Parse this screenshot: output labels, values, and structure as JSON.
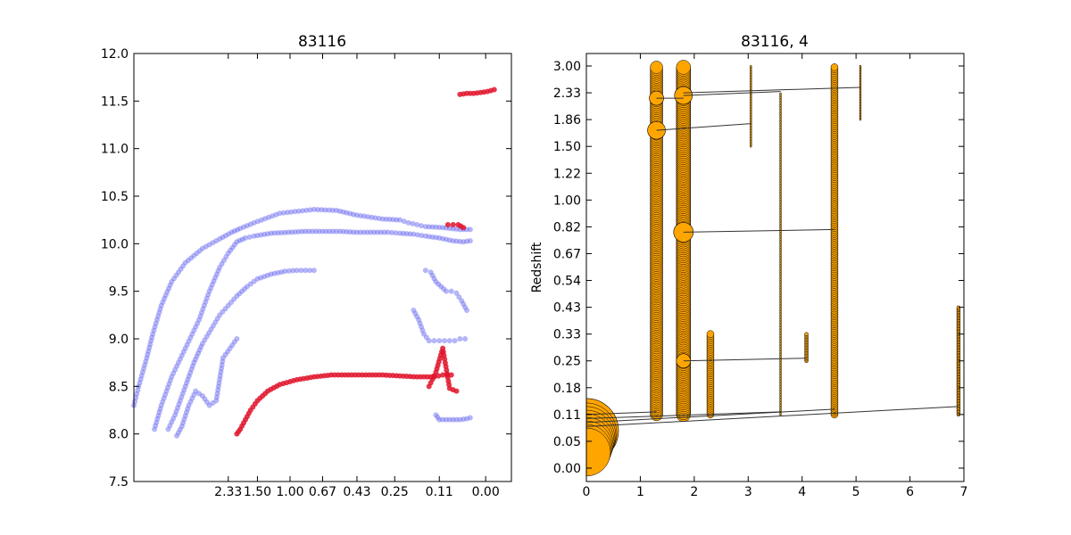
{
  "chart_data": [
    {
      "type": "scatter",
      "title": "83116",
      "xlabel": "",
      "ylabel": "",
      "ylim": [
        7.5,
        12.0
      ],
      "yticks": [
        "7.5",
        "8.0",
        "8.5",
        "9.0",
        "9.5",
        "10.0",
        "10.5",
        "11.0",
        "11.5",
        "12.0"
      ],
      "xticks": [
        "2.33",
        "1.50",
        "1.00",
        "0.67",
        "0.43",
        "0.25",
        "0.11",
        "0.00"
      ],
      "grid": false,
      "colors": {
        "blue": "#6b6bf2",
        "red": "#e0142c"
      },
      "series": [
        {
          "color": "blue",
          "segments": [
            {
              "x": [
                0.0,
                0.28,
                0.75,
                1.1,
                1.6,
                2.2,
                3.0,
                4.0,
                5.0,
                5.7,
                6.2,
                7.0,
                8.5,
                10.5,
                11.8,
                13.0,
                14.5,
                15.5,
                16.0,
                16.5,
                17.0,
                18.0,
                19.0,
                19.6
              ],
              "y": [
                8.3,
                8.5,
                8.8,
                9.05,
                9.35,
                9.6,
                9.8,
                9.95,
                10.05,
                10.12,
                10.16,
                10.22,
                10.32,
                10.36,
                10.35,
                10.3,
                10.26,
                10.25,
                10.22,
                10.2,
                10.18,
                10.17,
                10.15,
                10.15
              ]
            },
            {
              "x": [
                1.2,
                1.6,
                2.2,
                3.0,
                3.8,
                4.4,
                5.0,
                5.5,
                6.0,
                6.5,
                7.0,
                8.0,
                9.0,
                10.0,
                11.0,
                12.0,
                13.0,
                14.0,
                14.8,
                15.5,
                16.3,
                17.0,
                17.8,
                18.6,
                19.2,
                19.6
              ],
              "y": [
                8.05,
                8.3,
                8.6,
                8.9,
                9.2,
                9.5,
                9.75,
                9.9,
                10.02,
                10.06,
                10.08,
                10.11,
                10.12,
                10.13,
                10.13,
                10.13,
                10.12,
                10.12,
                10.12,
                10.11,
                10.1,
                10.08,
                10.06,
                10.03,
                10.02,
                10.03
              ]
            },
            {
              "x": [
                2.0,
                2.4,
                3.0,
                3.5,
                4.0,
                4.5,
                5.0,
                5.5,
                6.0,
                6.6,
                7.2,
                8.0,
                8.8,
                9.5,
                10.0,
                10.5
              ],
              "y": [
                8.05,
                8.2,
                8.5,
                8.75,
                8.95,
                9.1,
                9.25,
                9.35,
                9.45,
                9.55,
                9.63,
                9.68,
                9.71,
                9.72,
                9.72,
                9.72
              ]
            },
            {
              "x": [
                2.5,
                2.8,
                3.2,
                3.6,
                4.0,
                4.4,
                4.8,
                5.2,
                5.6,
                6.0
              ],
              "y": [
                7.98,
                8.08,
                8.3,
                8.45,
                8.4,
                8.3,
                8.35,
                8.8,
                8.9,
                9.0
              ]
            },
            {
              "x": [
                17.0,
                17.3,
                17.6,
                17.9,
                18.2,
                18.5,
                18.8,
                19.1,
                19.4
              ],
              "y": [
                9.72,
                9.7,
                9.6,
                9.55,
                9.5,
                9.5,
                9.48,
                9.4,
                9.3
              ]
            },
            {
              "x": [
                16.3,
                16.6,
                16.9,
                17.2,
                17.5,
                17.8,
                18.1,
                18.4,
                18.7,
                19.0,
                19.3
              ],
              "y": [
                9.3,
                9.2,
                9.05,
                8.98,
                8.98,
                8.98,
                8.98,
                8.98,
                8.98,
                9.0,
                9.0
              ]
            },
            {
              "x": [
                17.6,
                17.8,
                18.2,
                18.6,
                19.0,
                19.4,
                19.6
              ],
              "y": [
                8.2,
                8.15,
                8.15,
                8.15,
                8.15,
                8.16,
                8.17
              ]
            }
          ]
        },
        {
          "color": "red",
          "segments": [
            {
              "x": [
                6.0,
                6.2,
                6.5,
                6.8,
                7.2,
                7.8,
                8.5,
                9.5,
                10.5,
                11.5,
                12.5,
                13.5,
                14.5,
                15.5,
                16.5,
                17.5,
                18.0,
                18.5
              ],
              "y": [
                8.0,
                8.05,
                8.15,
                8.25,
                8.35,
                8.45,
                8.52,
                8.57,
                8.6,
                8.62,
                8.62,
                8.62,
                8.62,
                8.61,
                8.6,
                8.6,
                8.62,
                8.62
              ]
            },
            {
              "x": [
                17.2,
                17.6,
                18.0,
                18.4,
                18.8
              ],
              "y": [
                8.5,
                8.65,
                8.9,
                8.48,
                8.45
              ]
            },
            {
              "x": [
                18.3,
                18.6,
                18.9,
                19.2
              ],
              "y": [
                10.2,
                10.2,
                10.2,
                10.17
              ]
            },
            {
              "x": [
                19.0,
                19.4,
                19.8,
                20.2,
                20.6,
                21.0
              ],
              "y": [
                11.57,
                11.58,
                11.58,
                11.59,
                11.6,
                11.62
              ]
            }
          ]
        }
      ]
    },
    {
      "type": "scatter",
      "title": "83116, 4",
      "xlabel": "",
      "ylabel": "Redshift",
      "xlim": [
        0,
        7
      ],
      "xticks": [
        "0",
        "1",
        "2",
        "3",
        "4",
        "5",
        "6",
        "7"
      ],
      "yticks": [
        "0.00",
        "0.05",
        "0.11",
        "0.18",
        "0.25",
        "0.33",
        "0.43",
        "0.54",
        "0.67",
        "0.82",
        "1.00",
        "1.22",
        "1.50",
        "1.86",
        "2.33",
        "3.00"
      ],
      "grid": false,
      "colors": {
        "marker": "#ffa500",
        "edge": "#000000",
        "line": "#333333"
      },
      "columns": [
        {
          "x": 1.3,
          "from": 2,
          "to": 15,
          "size": 7
        },
        {
          "x": 1.8,
          "from": 2,
          "to": 15,
          "size": 8
        },
        {
          "x": 2.3,
          "from": 2,
          "to": 5,
          "size": 4
        },
        {
          "x": 3.05,
          "from": 12,
          "to": 15,
          "size": 1
        },
        {
          "x": 3.6,
          "from": 2,
          "to": 14,
          "size": 1
        },
        {
          "x": 4.08,
          "from": 4,
          "to": 5,
          "size": 2
        },
        {
          "x": 4.6,
          "from": 2,
          "to": 15,
          "size": 4
        },
        {
          "x": 5.08,
          "from": 13,
          "to": 15,
          "size": 1
        },
        {
          "x": 6.9,
          "from": 2,
          "to": 6,
          "size": 2
        }
      ],
      "big_marker": {
        "x": 0.0,
        "y": 1.4,
        "size": 36
      },
      "links": [
        {
          "x1": 1.3,
          "y1": 13.8,
          "x2": 1.8,
          "y2": 13.8
        },
        {
          "x1": 1.8,
          "y1": 13.9,
          "x2": 3.6,
          "y2": 14.05
        },
        {
          "x1": 1.8,
          "y1": 14.0,
          "x2": 5.08,
          "y2": 14.2
        },
        {
          "x1": 1.3,
          "y1": 12.6,
          "x2": 3.05,
          "y2": 12.85
        },
        {
          "x1": 1.8,
          "y1": 8.8,
          "x2": 4.6,
          "y2": 8.9
        },
        {
          "x1": 1.8,
          "y1": 4.0,
          "x2": 4.08,
          "y2": 4.1
        },
        {
          "x1": 0.0,
          "y1": 2.0,
          "x2": 1.3,
          "y2": 2.1
        },
        {
          "x1": 0.0,
          "y1": 1.85,
          "x2": 3.6,
          "y2": 2.1
        },
        {
          "x1": 0.0,
          "y1": 1.7,
          "x2": 4.6,
          "y2": 2.2
        },
        {
          "x1": 0.0,
          "y1": 1.55,
          "x2": 6.9,
          "y2": 2.3
        }
      ]
    }
  ]
}
